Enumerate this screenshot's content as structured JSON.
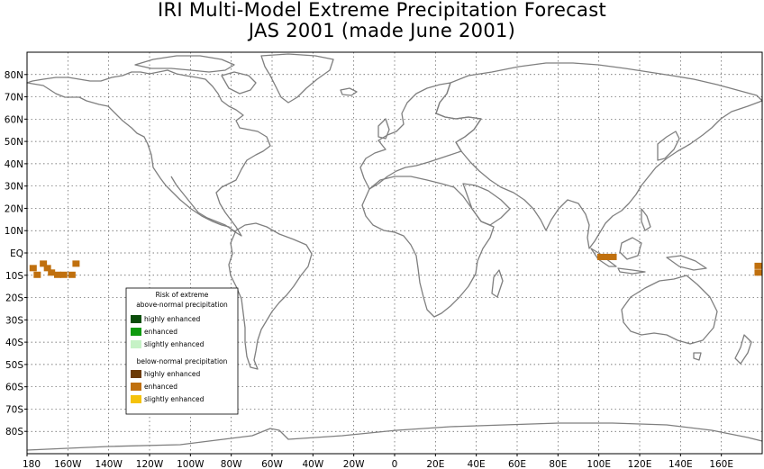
{
  "title": {
    "line1": "IRI Multi-Model Extreme Precipitation Forecast",
    "line2": "JAS 2001 (made June 2001)"
  },
  "map": {
    "lat_labels": [
      "80N",
      "70N",
      "60N",
      "50N",
      "40N",
      "30N",
      "20N",
      "10N",
      "EQ",
      "10S",
      "20S",
      "30S",
      "40S",
      "50S",
      "60S",
      "70S",
      "80S"
    ],
    "lon_labels": [
      "180",
      "160W",
      "140W",
      "120W",
      "100W",
      "80W",
      "60W",
      "40W",
      "20W",
      "0",
      "20E",
      "40E",
      "60E",
      "80E",
      "100E",
      "120E",
      "140E",
      "160E"
    ],
    "coastline_color": "#7f7f7f",
    "grid_color": "#555555"
  },
  "legend": {
    "above_title_1": "Risk of extreme",
    "above_title_2": "above-normal precipitation",
    "above_items": [
      {
        "label": "highly enhanced",
        "color": "#0b4d0b"
      },
      {
        "label": "enhanced",
        "color": "#0f9a0f"
      },
      {
        "label": "slightly enhanced",
        "color": "#c6f2c6"
      }
    ],
    "below_title": "below-normal precipitation",
    "below_items": [
      {
        "label": "highly enhanced",
        "color": "#6b3a05"
      },
      {
        "label": "enhanced",
        "color": "#c0700e"
      },
      {
        "label": "slightly enhanced",
        "color": "#f5c20a"
      }
    ]
  },
  "forecast_cells": {
    "color": "#c0700e",
    "cells_lon_lat": [
      [
        -177,
        -7
      ],
      [
        -175,
        -10
      ],
      [
        -172,
        -5
      ],
      [
        -170,
        -7
      ],
      [
        -168,
        -9
      ],
      [
        -165,
        -10
      ],
      [
        -162,
        -10
      ],
      [
        -158,
        -10
      ],
      [
        -156,
        -5
      ],
      [
        101,
        -2
      ],
      [
        104,
        -2
      ],
      [
        107,
        -2
      ],
      [
        178,
        -6
      ],
      [
        178,
        -9
      ]
    ]
  }
}
